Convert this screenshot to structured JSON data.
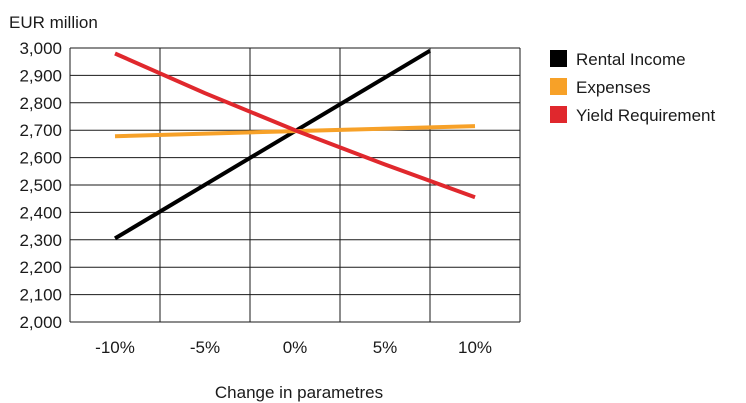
{
  "chart_data": {
    "type": "line",
    "ylabel": "EUR million",
    "xlabel": "Change in parametres",
    "categories": [
      "-10%",
      "-5%",
      "0%",
      "5%",
      "10%"
    ],
    "ylim": [
      2000,
      3000
    ],
    "yticks": [
      "2,000",
      "2,100",
      "2,200",
      "2,300",
      "2,400",
      "2,500",
      "2,600",
      "2,700",
      "2,800",
      "2,900",
      "3,000"
    ],
    "grid": true,
    "legend_position": "right",
    "series": [
      {
        "name": "Rental Income",
        "color": "#000000",
        "x": [
          -10,
          7.5
        ],
        "y": [
          2305,
          2990
        ]
      },
      {
        "name": "Expenses",
        "color": "#f7a128",
        "x": [
          -10,
          10
        ],
        "y": [
          2678,
          2715
        ]
      },
      {
        "name": "Yield Requirement",
        "color": "#e0282d",
        "x": [
          -10,
          -5,
          0,
          5,
          10
        ],
        "y": [
          2980,
          2835,
          2700,
          2575,
          2455
        ]
      }
    ]
  }
}
